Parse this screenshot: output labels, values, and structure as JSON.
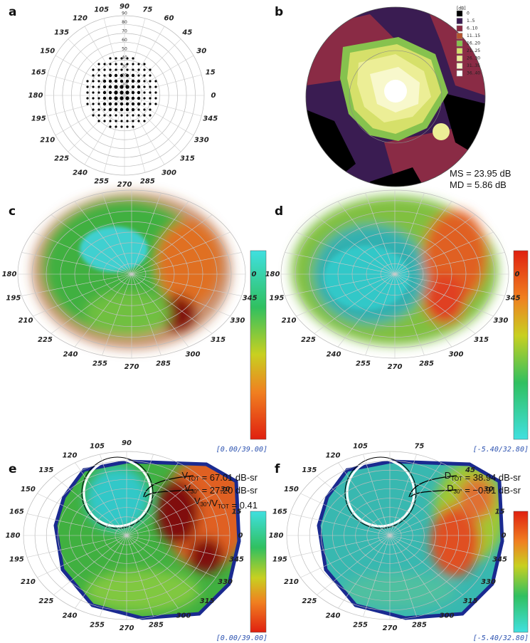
{
  "panel_a": {
    "label": "a",
    "angles": [
      0,
      15,
      30,
      45,
      60,
      75,
      90,
      105,
      120,
      135,
      150,
      165,
      180,
      195,
      210,
      225,
      240,
      255,
      270,
      285,
      300,
      315,
      330,
      345
    ],
    "radii": [
      10,
      20,
      30,
      40,
      50,
      60,
      70,
      80,
      90
    ]
  },
  "panel_b": {
    "label": "b",
    "legend_title": "[dB]",
    "legend": [
      {
        "label": "0",
        "color": "#000000"
      },
      {
        "label": "1..5",
        "color": "#3a1c52"
      },
      {
        "label": "6..10",
        "color": "#8a2b45"
      },
      {
        "label": "11..15",
        "color": "#b65530"
      },
      {
        "label": "16..20",
        "color": "#86c24e"
      },
      {
        "label": "21..25",
        "color": "#d6e06a"
      },
      {
        "label": "26..30",
        "color": "#ecee96"
      },
      {
        "label": "31..35",
        "color": "#f8f8cc"
      },
      {
        "label": "36..40",
        "color": "#ffffff"
      }
    ],
    "stats": [
      "MS = 23.95 dB",
      "MD = 5.86 dB"
    ]
  },
  "panel_c": {
    "label": "c",
    "angles": [
      180,
      195,
      210,
      225,
      240,
      255,
      270,
      285,
      300,
      315,
      330,
      345,
      0
    ],
    "range": "[0.00/39.00]"
  },
  "panel_d": {
    "label": "d",
    "angles": [
      180,
      195,
      210,
      225,
      240,
      255,
      270,
      285,
      300,
      315,
      330,
      345,
      0
    ],
    "range": "[-5.40/32.80]"
  },
  "panel_e": {
    "label": "e",
    "angles": [
      90,
      105,
      120,
      135,
      150,
      165,
      180,
      195,
      210,
      225,
      240,
      255,
      270,
      285,
      300,
      315,
      330,
      345,
      0,
      15,
      30
    ],
    "range": "[0.00/39.00]",
    "annotations": [
      [
        "V",
        {
          "sub": "TOT"
        },
        " = 67.01 dB-sr"
      ],
      [
        "V",
        {
          "sub": "30°"
        },
        " = 27.20 dB-sr"
      ],
      [
        "V",
        {
          "sub": "30°"
        },
        "/V",
        {
          "sub": "TOT"
        },
        " = 0.41"
      ]
    ]
  },
  "panel_f": {
    "label": "f",
    "angles": [
      75,
      45,
      30,
      15,
      0,
      345,
      330,
      315,
      300,
      285,
      270,
      255,
      240,
      225,
      210,
      195,
      180,
      165,
      150,
      135,
      120,
      105
    ],
    "range": "[-5.40/32.80]",
    "annotations": [
      [
        "D",
        {
          "sub": "TOT"
        },
        " = 38.94 dB-sr"
      ],
      [
        "D",
        {
          "sub": "30°"
        },
        " = −0.91 dB-sr"
      ]
    ]
  }
}
